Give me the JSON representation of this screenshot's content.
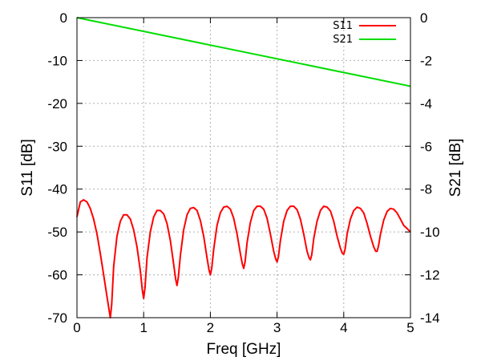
{
  "chart_data": {
    "type": "line",
    "title": "",
    "xlabel": "Freq [GHz]",
    "ylabel_left": "S11 [dB]",
    "ylabel_right": "S21 [dB]",
    "xlim": [
      0,
      5
    ],
    "ylim_left": [
      -70,
      0
    ],
    "ylim_right": [
      -14,
      0
    ],
    "xticks": [
      0,
      1,
      2,
      3,
      4,
      5
    ],
    "xtick_labels": [
      "0",
      "1",
      "2",
      "3",
      "4",
      "5"
    ],
    "yticks_left": [
      0,
      -10,
      -20,
      -30,
      -40,
      -50,
      -60,
      -70
    ],
    "ytick_labels_left": [
      "0",
      "-10",
      "-20",
      "-30",
      "-40",
      "-50",
      "-60",
      "-70"
    ],
    "yticks_right": [
      0,
      -2,
      -4,
      -6,
      -8,
      -10,
      -12,
      -14
    ],
    "ytick_labels_right": [
      "0",
      "-2",
      "-4",
      "-6",
      "-8",
      "-10",
      "-12",
      "-14"
    ],
    "grid": true,
    "legend_position": "top-right",
    "series": [
      {
        "name": "S11",
        "axis": "left",
        "color": "#ff0000",
        "x": [
          0,
          0.05,
          0.1,
          0.15,
          0.2,
          0.25,
          0.3,
          0.35,
          0.4,
          0.45,
          0.48,
          0.5,
          0.52,
          0.55,
          0.6,
          0.65,
          0.7,
          0.75,
          0.8,
          0.85,
          0.9,
          0.95,
          0.98,
          1.0,
          1.02,
          1.05,
          1.1,
          1.15,
          1.2,
          1.25,
          1.3,
          1.35,
          1.4,
          1.45,
          1.48,
          1.5,
          1.52,
          1.55,
          1.6,
          1.65,
          1.7,
          1.75,
          1.8,
          1.85,
          1.9,
          1.95,
          1.98,
          2.0,
          2.02,
          2.05,
          2.1,
          2.15,
          2.2,
          2.25,
          2.3,
          2.35,
          2.4,
          2.45,
          2.48,
          2.5,
          2.52,
          2.55,
          2.6,
          2.65,
          2.7,
          2.75,
          2.8,
          2.85,
          2.9,
          2.95,
          2.98,
          3.0,
          3.02,
          3.05,
          3.1,
          3.15,
          3.2,
          3.25,
          3.3,
          3.35,
          3.4,
          3.45,
          3.48,
          3.5,
          3.52,
          3.55,
          3.6,
          3.65,
          3.7,
          3.75,
          3.8,
          3.85,
          3.9,
          3.95,
          3.98,
          4.0,
          4.02,
          4.05,
          4.1,
          4.15,
          4.2,
          4.25,
          4.3,
          4.35,
          4.4,
          4.45,
          4.48,
          4.5,
          4.52,
          4.55,
          4.6,
          4.65,
          4.7,
          4.75,
          4.8,
          4.85,
          4.9,
          4.95,
          5.0
        ],
        "y": [
          -46.5,
          -43,
          -42.5,
          -43,
          -44.5,
          -47,
          -50.5,
          -55,
          -60,
          -65,
          -68,
          -70,
          -67,
          -58,
          -51,
          -47.5,
          -46,
          -46,
          -47,
          -49.5,
          -53.5,
          -59,
          -63.5,
          -65.5,
          -63,
          -56,
          -50,
          -46.5,
          -45,
          -45,
          -45.8,
          -48,
          -52,
          -57.5,
          -61,
          -62.5,
          -60.5,
          -55.5,
          -49.5,
          -46,
          -44.5,
          -44.3,
          -45,
          -47.3,
          -51,
          -56,
          -58.8,
          -60,
          -58.5,
          -54,
          -48.5,
          -45.5,
          -44.2,
          -44,
          -44.7,
          -46.8,
          -50.5,
          -55,
          -57.5,
          -58.5,
          -57,
          -52.5,
          -47.8,
          -45,
          -44,
          -44,
          -44.7,
          -46.8,
          -50.5,
          -54.5,
          -56.3,
          -57,
          -55.8,
          -52,
          -47.5,
          -45,
          -44,
          -44,
          -44.8,
          -47,
          -50.5,
          -54.5,
          -56,
          -56.5,
          -55.3,
          -51.5,
          -47.5,
          -45,
          -44,
          -44.2,
          -45.1,
          -47.5,
          -51,
          -53.8,
          -55,
          -55.2,
          -54,
          -50.5,
          -47,
          -45,
          -44.2,
          -44.5,
          -45.6,
          -48,
          -51,
          -53.5,
          -54.5,
          -54.5,
          -53.3,
          -50.5,
          -47.2,
          -45.2,
          -44.5,
          -44.7,
          -45.6,
          -47,
          -48.5,
          -49.2,
          -50
        ]
      },
      {
        "name": "S21",
        "axis": "right",
        "color": "#00dd00",
        "x": [
          0,
          5
        ],
        "y": [
          0,
          -3.2
        ]
      }
    ]
  }
}
